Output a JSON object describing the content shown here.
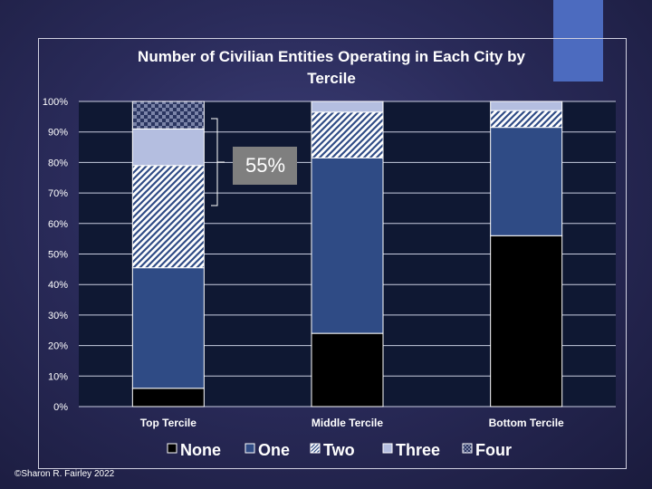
{
  "credit": "©Sharon R. Fairley 2022",
  "colors": {
    "none": "#000000",
    "one": "#2f4b85",
    "two_stripe": "#9aa3c8",
    "three": "#b4bee0",
    "four_a": "#7b84a8",
    "four_b": "#2a3560",
    "plot_bg": "#0f1833",
    "callout_bg": "#7f7f7f",
    "accent": "#4c6bbf"
  },
  "callout": {
    "text": "55%"
  },
  "chart_data": {
    "type": "bar",
    "stacked": true,
    "title": "Number of Civilian Entities Operating in Each City by Tercile",
    "categories": [
      "Top Tercile",
      "Middle Tercile",
      "Bottom Tercile"
    ],
    "series": [
      {
        "name": "None",
        "values": [
          6,
          24,
          56
        ]
      },
      {
        "name": "One",
        "values": [
          39.5,
          57.5,
          35.5
        ]
      },
      {
        "name": "Two",
        "values": [
          33.5,
          15,
          5.5
        ]
      },
      {
        "name": "Three",
        "values": [
          12,
          3.5,
          3
        ]
      },
      {
        "name": "Four",
        "values": [
          9,
          0,
          0
        ]
      }
    ],
    "ylim": [
      0,
      100
    ],
    "yticks": [
      "0%",
      "10%",
      "20%",
      "30%",
      "40%",
      "50%",
      "60%",
      "70%",
      "80%",
      "90%",
      "100%"
    ],
    "grid": true,
    "legend": "bottom"
  }
}
